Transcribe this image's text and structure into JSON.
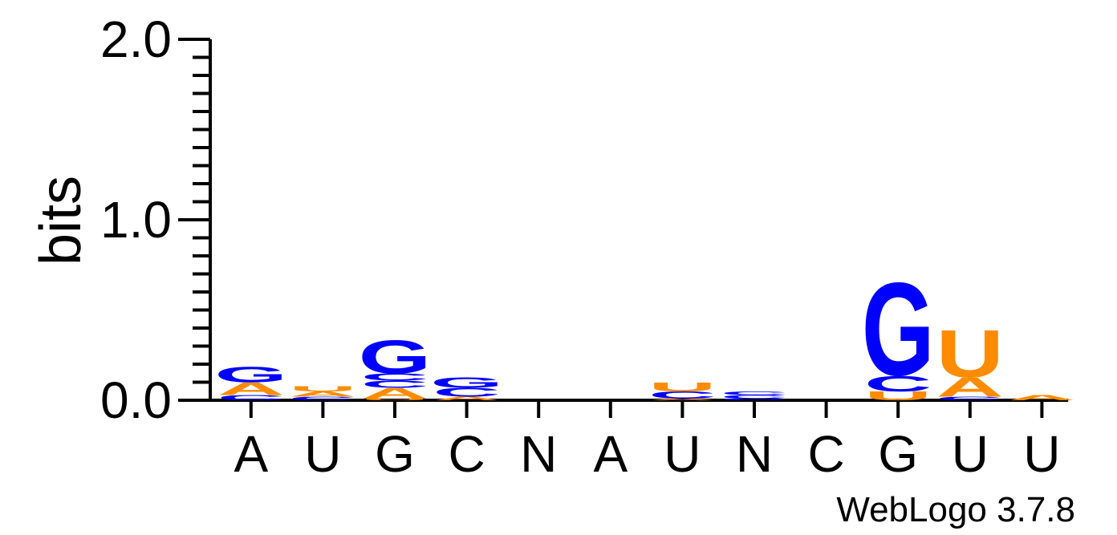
{
  "chart_data": {
    "type": "sequence-logo",
    "ylabel": "bits",
    "ylim": [
      0,
      2.0
    ],
    "yticks": [
      "0.0",
      "1.0",
      "2.0"
    ],
    "xlabels": [
      "A",
      "U",
      "G",
      "C",
      "N",
      "A",
      "U",
      "N",
      "C",
      "G",
      "U",
      "U"
    ],
    "colors": {
      "G": "#0000ff",
      "C": "#0000ff",
      "A": "#ff8c00",
      "U": "#ff8c00"
    },
    "positions": [
      {
        "label": "A",
        "stack": [
          {
            "letter": "C",
            "bits": 0.03
          },
          {
            "letter": "A",
            "bits": 0.07
          },
          {
            "letter": "G",
            "bits": 0.09
          }
        ]
      },
      {
        "label": "U",
        "stack": [
          {
            "letter": "C",
            "bits": 0.02
          },
          {
            "letter": "A",
            "bits": 0.03
          },
          {
            "letter": "U",
            "bits": 0.03
          }
        ]
      },
      {
        "label": "G",
        "stack": [
          {
            "letter": "U",
            "bits": 0.01
          },
          {
            "letter": "A",
            "bits": 0.06
          },
          {
            "letter": "C",
            "bits": 0.04
          },
          {
            "letter": "C",
            "bits": 0.04
          },
          {
            "letter": "G",
            "bits": 0.19
          }
        ]
      },
      {
        "label": "C",
        "stack": [
          {
            "letter": "A",
            "bits": 0.02
          },
          {
            "letter": "C",
            "bits": 0.05
          },
          {
            "letter": "G",
            "bits": 0.06
          }
        ]
      },
      {
        "label": "N",
        "stack": []
      },
      {
        "label": "A",
        "stack": []
      },
      {
        "label": "U",
        "stack": [
          {
            "letter": "A",
            "bits": 0.01
          },
          {
            "letter": "C",
            "bits": 0.04
          },
          {
            "letter": "U",
            "bits": 0.05
          }
        ]
      },
      {
        "label": "N",
        "stack": [
          {
            "letter": "C",
            "bits": 0.01
          },
          {
            "letter": "C",
            "bits": 0.02
          },
          {
            "letter": "C",
            "bits": 0.02
          }
        ]
      },
      {
        "label": "C",
        "stack": []
      },
      {
        "label": "G",
        "stack": [
          {
            "letter": "U",
            "bits": 0.05
          },
          {
            "letter": "C",
            "bits": 0.09
          },
          {
            "letter": "G",
            "bits": 0.53
          }
        ]
      },
      {
        "label": "U",
        "stack": [
          {
            "letter": "C",
            "bits": 0.02
          },
          {
            "letter": "A",
            "bits": 0.11
          },
          {
            "letter": "U",
            "bits": 0.27
          }
        ]
      },
      {
        "label": "U",
        "stack": [
          {
            "letter": "A",
            "bits": 0.03
          }
        ]
      }
    ]
  },
  "credit": "WebLogo 3.7.8"
}
